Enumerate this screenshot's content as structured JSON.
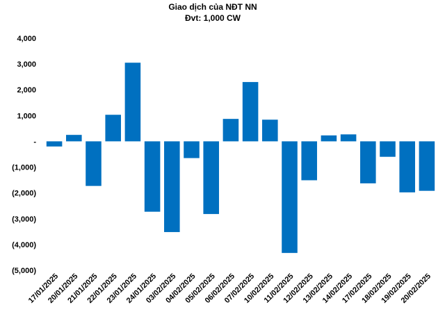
{
  "chart_data": {
    "type": "bar",
    "title": "Giao dịch của NĐT NN",
    "subtitle": "Đvt: 1,000 CW",
    "categories": [
      "17/01/2025",
      "20/01/2025",
      "21/01/2025",
      "22/01/2025",
      "23/01/2025",
      "24/01/2025",
      "03/02/2025",
      "04/02/2025",
      "05/02/2025",
      "06/02/2025",
      "07/02/2025",
      "10/02/2025",
      "11/02/2025",
      "12/02/2025",
      "13/02/2025",
      "14/02/2025",
      "17/02/2025",
      "18/02/2025",
      "19/02/2025",
      "20/02/2025"
    ],
    "values": [
      -200,
      250,
      -1730,
      1030,
      3050,
      -2730,
      -3520,
      -650,
      -2820,
      870,
      2300,
      840,
      -4330,
      -1510,
      230,
      270,
      -1630,
      -600,
      -1980,
      -1920
    ],
    "ylim": [
      -5000,
      4000
    ],
    "yticks": [
      4000,
      3000,
      2000,
      1000,
      0,
      -1000,
      -2000,
      -3000,
      -4000,
      -5000
    ],
    "ytick_labels": [
      "4,000",
      "3,000",
      "2,000",
      "1,000",
      "-",
      "(1,000)",
      "(2,000)",
      "(3,000)",
      "(4,000)",
      "(5,000)"
    ],
    "xlabel": "",
    "ylabel": "",
    "grid": false,
    "legend": "none",
    "bar_color": "#0070C0"
  }
}
